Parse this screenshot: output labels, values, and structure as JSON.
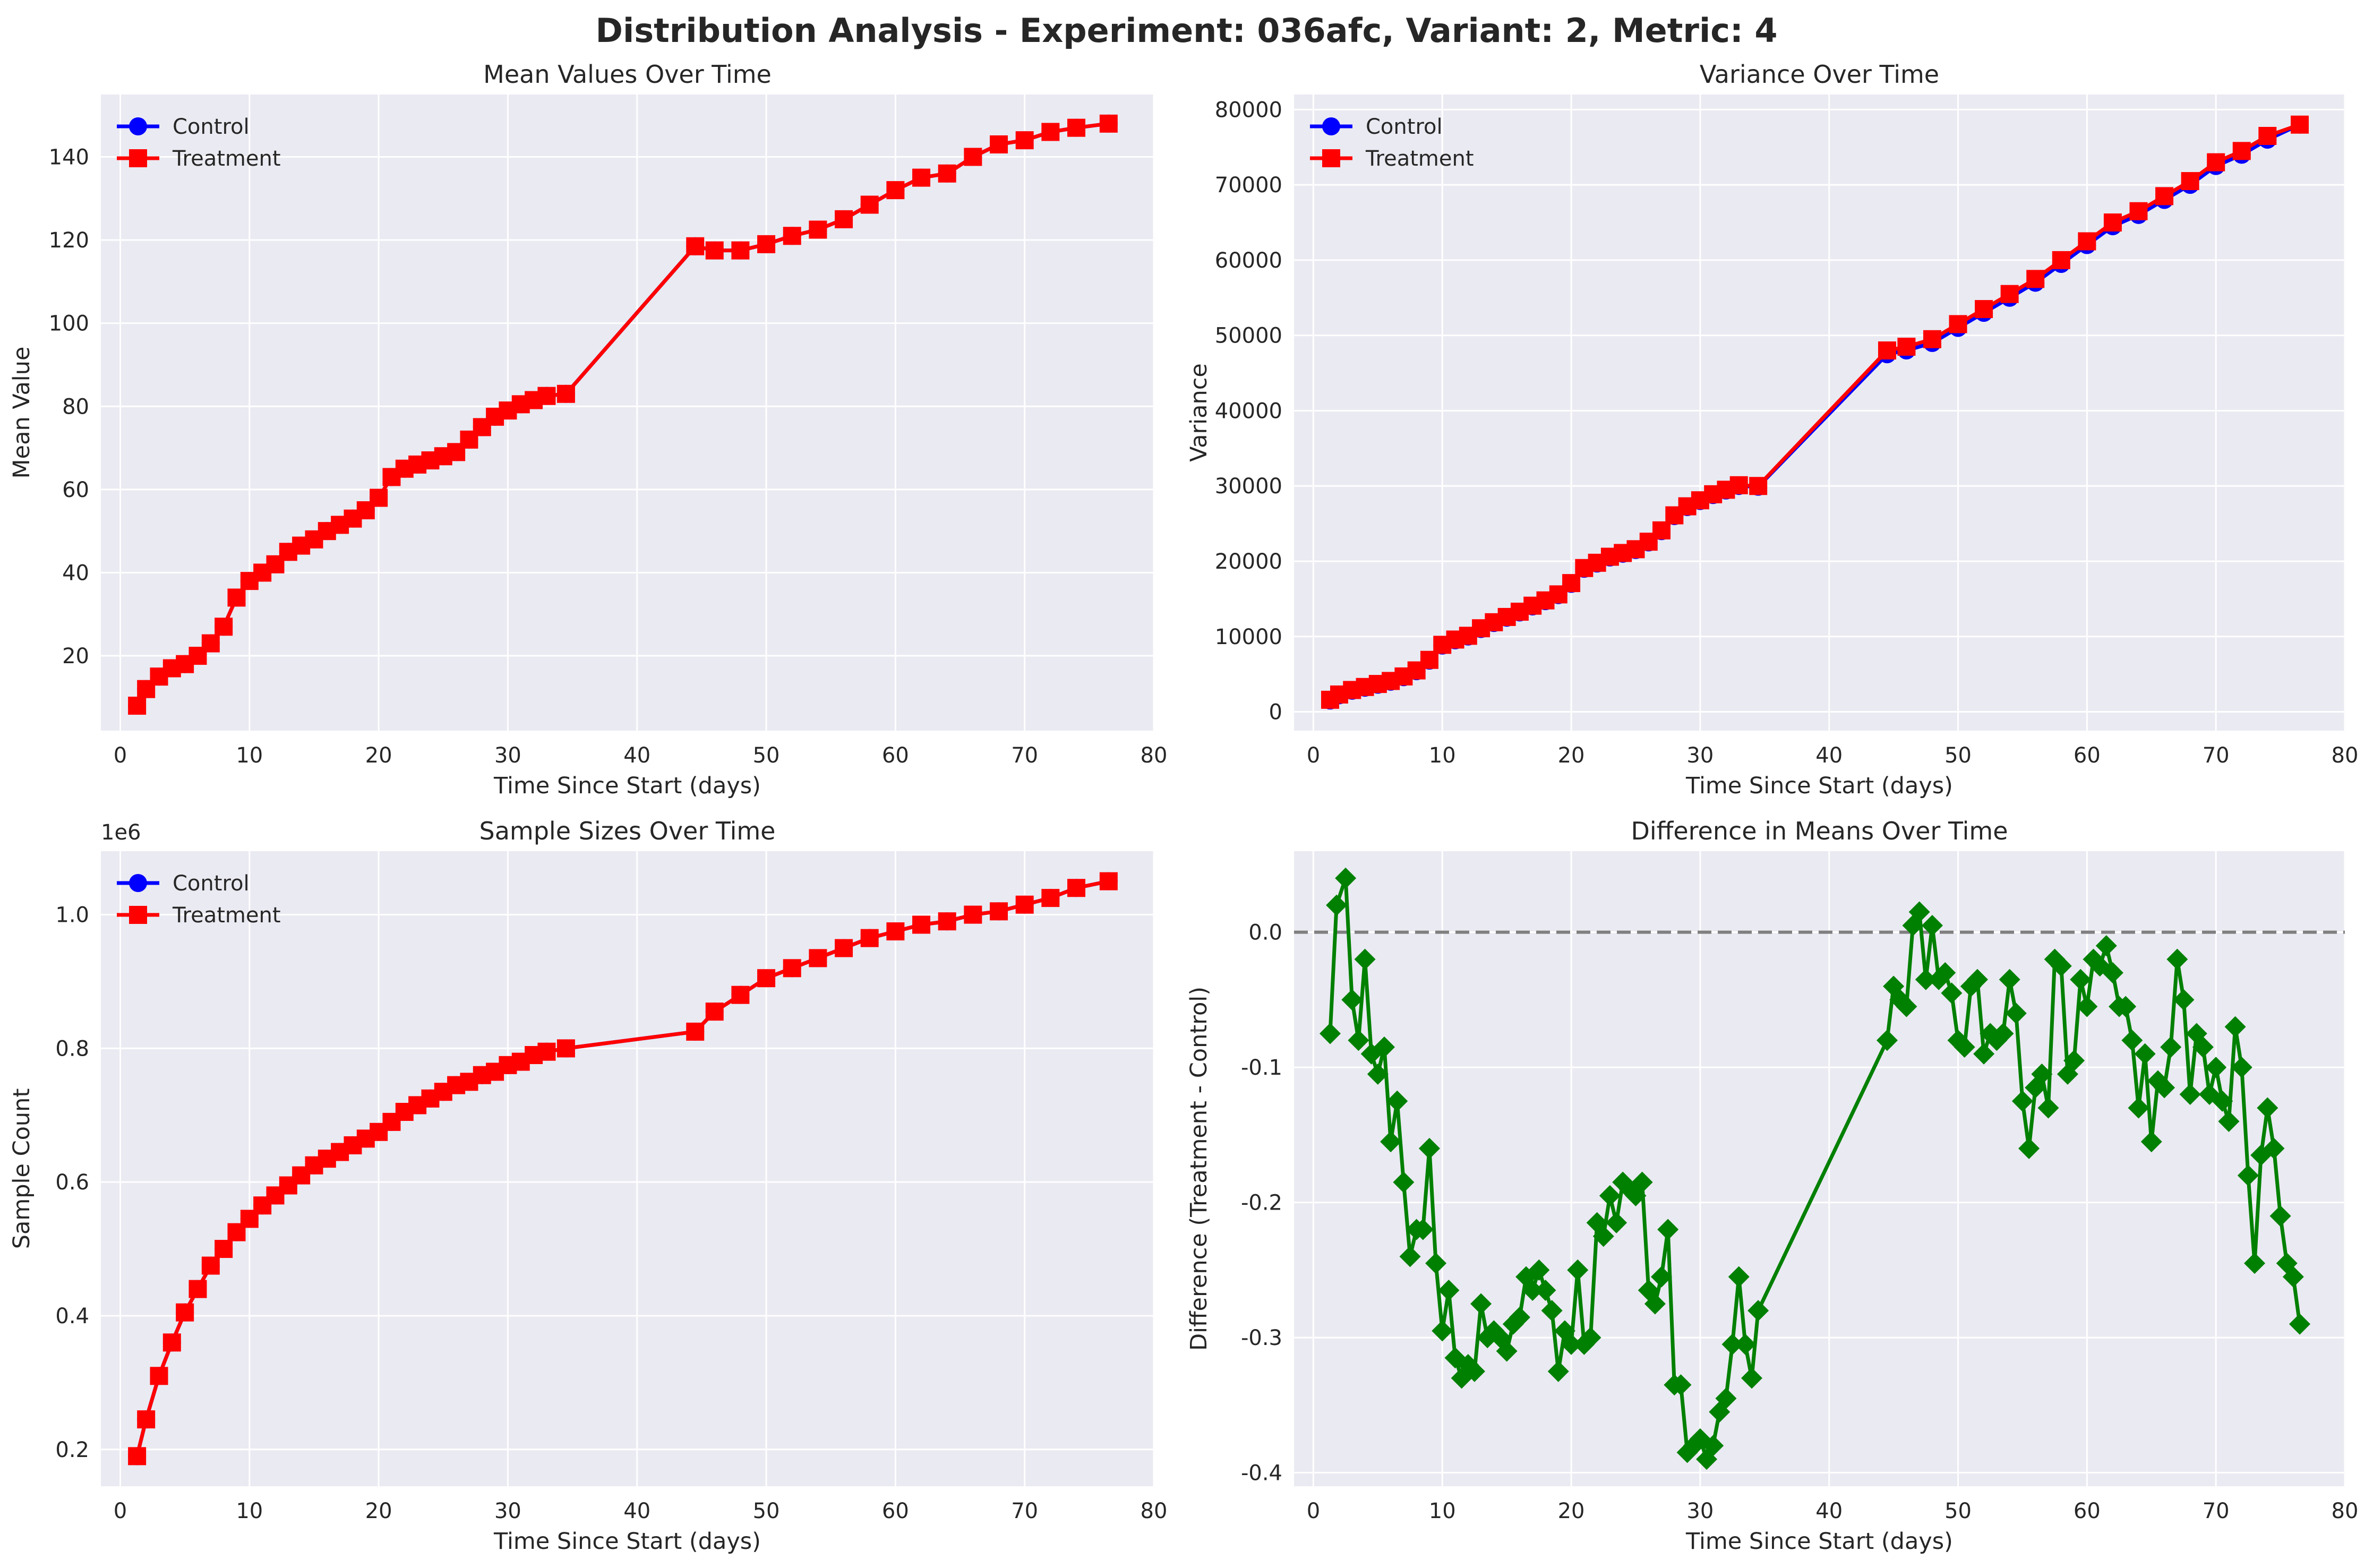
{
  "suptitle": "Distribution Analysis - Experiment: 036afc, Variant: 2, Metric: 4",
  "colors": {
    "control": "#0000ff",
    "treatment": "#ff0000",
    "difference": "#008000",
    "panel_bg": "#eaeaf2",
    "grid": "#ffffff",
    "zero_line": "#808080"
  },
  "chart_data": [
    {
      "type": "line",
      "title": "Mean Values Over Time",
      "xlabel": "Time Since Start (days)",
      "ylabel": "Mean Value",
      "xlim": [
        -1.5,
        80
      ],
      "ylim": [
        2,
        155
      ],
      "xticks": [
        0,
        10,
        20,
        30,
        40,
        50,
        60,
        70,
        80
      ],
      "yticks": [
        20,
        40,
        60,
        80,
        100,
        120,
        140
      ],
      "legend": "top-left",
      "grid": true,
      "series": [
        {
          "name": "Control",
          "marker": "circle",
          "color": "#0000ff",
          "x": [
            1.3,
            2,
            3,
            4,
            5,
            6,
            7,
            8,
            9,
            10,
            11,
            12,
            13,
            14,
            15,
            16,
            17,
            18,
            19,
            20,
            21,
            22,
            23,
            24,
            25,
            26,
            27,
            28,
            29,
            30,
            31,
            32,
            33,
            34.5,
            44.5,
            46,
            48,
            50,
            52,
            54,
            56,
            58,
            60,
            62,
            64,
            66,
            68,
            70,
            72,
            74,
            76.5
          ],
          "y": [
            8,
            12,
            15,
            17,
            18,
            20,
            23,
            27,
            34,
            38,
            40,
            42,
            45,
            46.5,
            48,
            50,
            51.5,
            53,
            55,
            58,
            63,
            65,
            66,
            67,
            68,
            69,
            72,
            75,
            77.5,
            79,
            80.5,
            81.5,
            82.5,
            83,
            118.5,
            117.5,
            117.5,
            119,
            121,
            122.5,
            125,
            128.5,
            132,
            135,
            136,
            140,
            143,
            144,
            146,
            147,
            148
          ]
        },
        {
          "name": "Treatment",
          "marker": "square",
          "color": "#ff0000",
          "x": [
            1.3,
            2,
            3,
            4,
            5,
            6,
            7,
            8,
            9,
            10,
            11,
            12,
            13,
            14,
            15,
            16,
            17,
            18,
            19,
            20,
            21,
            22,
            23,
            24,
            25,
            26,
            27,
            28,
            29,
            30,
            31,
            32,
            33,
            34.5,
            44.5,
            46,
            48,
            50,
            52,
            54,
            56,
            58,
            60,
            62,
            64,
            66,
            68,
            70,
            72,
            74,
            76.5
          ],
          "y": [
            8,
            12,
            15,
            17,
            18,
            20,
            23,
            27,
            34,
            38,
            40,
            42,
            45,
            46.5,
            48,
            50,
            51.5,
            53,
            55,
            58,
            63,
            65,
            66,
            67,
            68,
            69,
            72,
            75,
            77.5,
            79,
            80.5,
            81.5,
            82.5,
            83,
            118.5,
            117.5,
            117.5,
            119,
            121,
            122.5,
            125,
            128.5,
            132,
            135,
            136,
            140,
            143,
            144,
            146,
            147,
            148
          ]
        }
      ]
    },
    {
      "type": "line",
      "title": "Variance Over Time",
      "xlabel": "Time Since Start (days)",
      "ylabel": "Variance",
      "xlim": [
        -1.5,
        80
      ],
      "ylim": [
        -2500,
        82000
      ],
      "xticks": [
        0,
        10,
        20,
        30,
        40,
        50,
        60,
        70,
        80
      ],
      "yticks": [
        0,
        10000,
        20000,
        30000,
        40000,
        50000,
        60000,
        70000,
        80000
      ],
      "legend": "top-left",
      "grid": true,
      "series": [
        {
          "name": "Control",
          "marker": "circle",
          "color": "#0000ff",
          "x": [
            1.3,
            2,
            3,
            4,
            5,
            6,
            7,
            8,
            9,
            10,
            11,
            12,
            13,
            14,
            15,
            16,
            17,
            18,
            19,
            20,
            21,
            22,
            23,
            24,
            25,
            26,
            27,
            28,
            29,
            30,
            31,
            32,
            33,
            34.5,
            44.5,
            46,
            48,
            50,
            52,
            54,
            56,
            58,
            60,
            62,
            64,
            66,
            68,
            70,
            72,
            74,
            76.5
          ],
          "y": [
            1500,
            2200,
            2800,
            3200,
            3600,
            4000,
            4600,
            5400,
            6800,
            8800,
            9500,
            10000,
            11000,
            11800,
            12500,
            13200,
            14000,
            14700,
            15500,
            17000,
            19000,
            19700,
            20500,
            21000,
            21500,
            22500,
            24000,
            26000,
            27200,
            28000,
            28800,
            29400,
            30000,
            29900,
            47500,
            48000,
            49000,
            51000,
            53000,
            55000,
            57000,
            59500,
            62000,
            64500,
            66000,
            68000,
            70000,
            72500,
            74000,
            76000,
            78000
          ]
        },
        {
          "name": "Treatment",
          "marker": "square",
          "color": "#ff0000",
          "x": [
            1.3,
            2,
            3,
            4,
            5,
            6,
            7,
            8,
            9,
            10,
            11,
            12,
            13,
            14,
            15,
            16,
            17,
            18,
            19,
            20,
            21,
            22,
            23,
            24,
            25,
            26,
            27,
            28,
            29,
            30,
            31,
            32,
            33,
            34.5,
            44.5,
            46,
            48,
            50,
            52,
            54,
            56,
            58,
            60,
            62,
            64,
            66,
            68,
            70,
            72,
            74,
            76.5
          ],
          "y": [
            1600,
            2300,
            2900,
            3300,
            3700,
            4100,
            4700,
            5500,
            6900,
            8900,
            9600,
            10100,
            11100,
            11900,
            12600,
            13300,
            14100,
            14800,
            15600,
            17100,
            19100,
            19800,
            20600,
            21100,
            21600,
            22600,
            24100,
            26100,
            27300,
            28100,
            28900,
            29500,
            30100,
            30000,
            48000,
            48500,
            49500,
            51500,
            53500,
            55500,
            57500,
            60000,
            62500,
            65000,
            66500,
            68500,
            70500,
            73000,
            74500,
            76500,
            78000
          ]
        }
      ]
    },
    {
      "type": "line",
      "title": "Sample Sizes Over Time",
      "xlabel": "Time Since Start (days)",
      "ylabel": "Sample Count",
      "offset_text": "1e6",
      "xlim": [
        -1.5,
        80
      ],
      "ylim": [
        0.145,
        1.095
      ],
      "xticks": [
        0,
        10,
        20,
        30,
        40,
        50,
        60,
        70,
        80
      ],
      "yticks": [
        0.2,
        0.4,
        0.6,
        0.8,
        1.0
      ],
      "legend": "top-left",
      "grid": true,
      "series": [
        {
          "name": "Control",
          "marker": "circle",
          "color": "#0000ff",
          "x": [
            1.3,
            2,
            3,
            4,
            5,
            6,
            7,
            8,
            9,
            10,
            11,
            12,
            13,
            14,
            15,
            16,
            17,
            18,
            19,
            20,
            21,
            22,
            23,
            24,
            25,
            26,
            27,
            28,
            29,
            30,
            31,
            32,
            33,
            34.5,
            44.5,
            46,
            48,
            50,
            52,
            54,
            56,
            58,
            60,
            62,
            64,
            66,
            68,
            70,
            72,
            74,
            76.5
          ],
          "y": [
            0.19,
            0.245,
            0.31,
            0.36,
            0.405,
            0.44,
            0.475,
            0.5,
            0.525,
            0.545,
            0.565,
            0.58,
            0.595,
            0.61,
            0.625,
            0.635,
            0.645,
            0.655,
            0.665,
            0.675,
            0.69,
            0.705,
            0.715,
            0.725,
            0.735,
            0.745,
            0.75,
            0.76,
            0.765,
            0.775,
            0.78,
            0.79,
            0.795,
            0.8,
            0.825,
            0.855,
            0.88,
            0.905,
            0.92,
            0.935,
            0.95,
            0.965,
            0.975,
            0.985,
            0.99,
            1.0,
            1.005,
            1.015,
            1.025,
            1.04,
            1.05
          ]
        },
        {
          "name": "Treatment",
          "marker": "square",
          "color": "#ff0000",
          "x": [
            1.3,
            2,
            3,
            4,
            5,
            6,
            7,
            8,
            9,
            10,
            11,
            12,
            13,
            14,
            15,
            16,
            17,
            18,
            19,
            20,
            21,
            22,
            23,
            24,
            25,
            26,
            27,
            28,
            29,
            30,
            31,
            32,
            33,
            34.5,
            44.5,
            46,
            48,
            50,
            52,
            54,
            56,
            58,
            60,
            62,
            64,
            66,
            68,
            70,
            72,
            74,
            76.5
          ],
          "y": [
            0.19,
            0.245,
            0.31,
            0.36,
            0.405,
            0.44,
            0.475,
            0.5,
            0.525,
            0.545,
            0.565,
            0.58,
            0.595,
            0.61,
            0.625,
            0.635,
            0.645,
            0.655,
            0.665,
            0.675,
            0.69,
            0.705,
            0.715,
            0.725,
            0.735,
            0.745,
            0.75,
            0.76,
            0.765,
            0.775,
            0.78,
            0.79,
            0.795,
            0.8,
            0.825,
            0.855,
            0.88,
            0.905,
            0.92,
            0.935,
            0.95,
            0.965,
            0.975,
            0.985,
            0.99,
            1.0,
            1.005,
            1.015,
            1.025,
            1.04,
            1.05
          ]
        }
      ]
    },
    {
      "type": "line",
      "title": "Difference in Means Over Time",
      "xlabel": "Time Since Start (days)",
      "ylabel": "Difference (Treatment - Control)",
      "xlim": [
        -1.5,
        80
      ],
      "ylim": [
        -0.41,
        0.06
      ],
      "xticks": [
        0,
        10,
        20,
        30,
        40,
        50,
        60,
        70,
        80
      ],
      "yticks": [
        0.0,
        -0.1,
        -0.2,
        -0.3,
        -0.4
      ],
      "reference_line": 0.0,
      "grid": true,
      "series": [
        {
          "name": "",
          "marker": "diamond",
          "color": "#008000",
          "x": [
            1.3,
            1.8,
            2.5,
            3,
            3.5,
            4,
            4.5,
            5,
            5.5,
            6,
            6.5,
            7,
            7.5,
            8,
            8.5,
            9,
            9.5,
            10,
            10.5,
            11,
            11.5,
            12,
            12.5,
            13,
            13.5,
            14,
            14.5,
            15,
            15.5,
            16,
            16.5,
            17,
            17.5,
            18,
            18.5,
            19,
            19.5,
            20,
            20.5,
            21,
            21.5,
            22,
            22.5,
            23,
            23.5,
            24,
            24.5,
            25,
            25.5,
            26,
            26.5,
            27,
            27.5,
            28,
            28.5,
            29,
            29.5,
            30,
            30.5,
            31,
            31.5,
            32,
            32.5,
            33,
            33.5,
            34,
            34.5,
            44.5,
            45,
            45.5,
            46,
            46.5,
            47,
            47.5,
            48,
            48.5,
            49,
            49.5,
            50,
            50.5,
            51,
            51.5,
            52,
            52.5,
            53,
            53.5,
            54,
            54.5,
            55,
            55.5,
            56,
            56.5,
            57,
            57.5,
            58,
            58.5,
            59,
            59.5,
            60,
            60.5,
            61,
            61.5,
            62,
            62.5,
            63,
            63.5,
            64,
            64.5,
            65,
            65.5,
            66,
            66.5,
            67,
            67.5,
            68,
            68.5,
            69,
            69.5,
            70,
            70.5,
            71,
            71.5,
            72,
            72.5,
            73,
            73.5,
            74,
            74.5,
            75,
            75.5,
            76,
            76.5
          ],
          "y": [
            -0.075,
            0.02,
            0.04,
            -0.05,
            -0.08,
            -0.02,
            -0.09,
            -0.105,
            -0.085,
            -0.155,
            -0.125,
            -0.185,
            -0.24,
            -0.22,
            -0.22,
            -0.16,
            -0.245,
            -0.295,
            -0.265,
            -0.315,
            -0.33,
            -0.32,
            -0.325,
            -0.275,
            -0.3,
            -0.295,
            -0.3,
            -0.31,
            -0.29,
            -0.285,
            -0.255,
            -0.265,
            -0.25,
            -0.265,
            -0.28,
            -0.325,
            -0.295,
            -0.305,
            -0.25,
            -0.305,
            -0.3,
            -0.215,
            -0.225,
            -0.195,
            -0.215,
            -0.185,
            -0.19,
            -0.195,
            -0.185,
            -0.265,
            -0.275,
            -0.255,
            -0.22,
            -0.335,
            -0.335,
            -0.385,
            -0.38,
            -0.375,
            -0.39,
            -0.38,
            -0.355,
            -0.345,
            -0.305,
            -0.255,
            -0.305,
            -0.33,
            -0.28,
            -0.08,
            -0.04,
            -0.05,
            -0.055,
            0.005,
            0.015,
            -0.035,
            0.005,
            -0.035,
            -0.03,
            -0.045,
            -0.08,
            -0.085,
            -0.04,
            -0.035,
            -0.09,
            -0.075,
            -0.08,
            -0.075,
            -0.035,
            -0.06,
            -0.125,
            -0.16,
            -0.115,
            -0.105,
            -0.13,
            -0.02,
            -0.025,
            -0.105,
            -0.095,
            -0.035,
            -0.055,
            -0.02,
            -0.025,
            -0.01,
            -0.03,
            -0.055,
            -0.055,
            -0.08,
            -0.13,
            -0.09,
            -0.155,
            -0.11,
            -0.115,
            -0.085,
            -0.02,
            -0.05,
            -0.12,
            -0.075,
            -0.085,
            -0.12,
            -0.1,
            -0.125,
            -0.14,
            -0.07,
            -0.1,
            -0.18,
            -0.245,
            -0.165,
            -0.13,
            -0.16,
            -0.21,
            -0.245,
            -0.255,
            -0.29
          ]
        }
      ]
    }
  ]
}
